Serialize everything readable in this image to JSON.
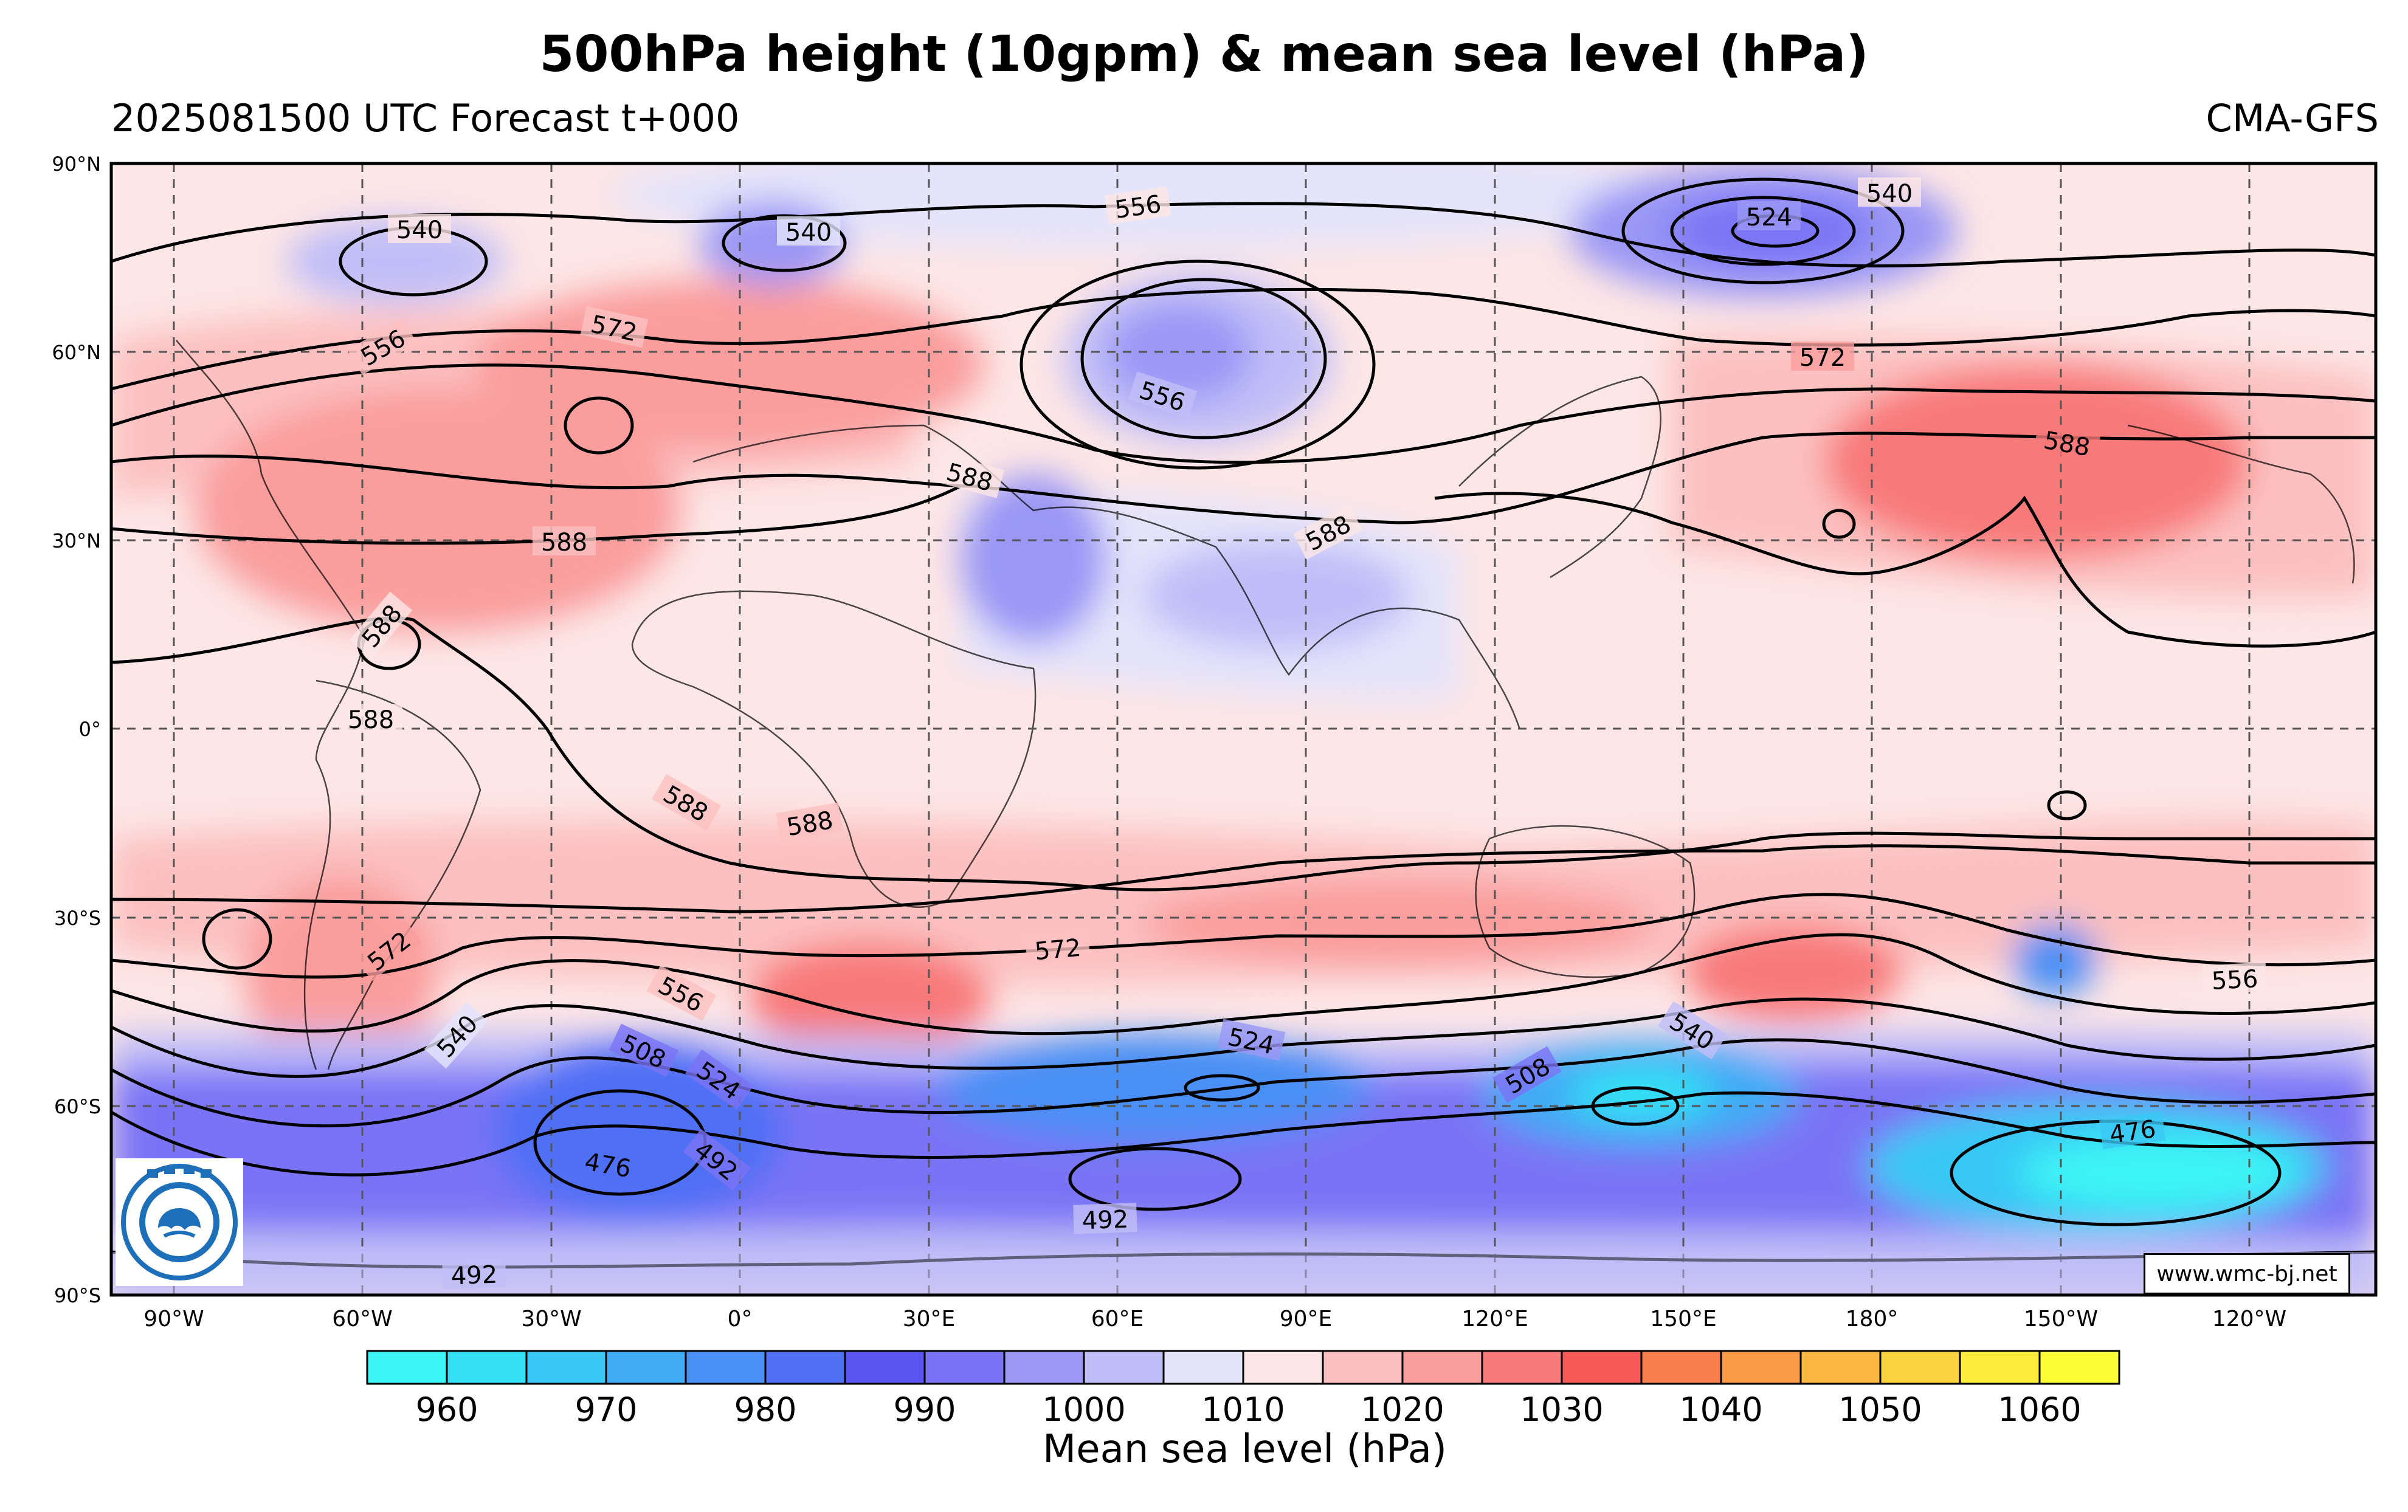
{
  "title": "500hPa height (10gpm) & mean sea level (hPa)",
  "subtitle_left": "2025081500 UTC Forecast t+000",
  "subtitle_right": "CMA-GFS",
  "website": "www.wmc-bj.net",
  "logo_icon": "cma-logo-icon",
  "lat_labels": [
    "90°N",
    "60°N",
    "30°N",
    "0°",
    "30°S",
    "60°S",
    "90°S"
  ],
  "lon_labels": [
    "90°W",
    "60°W",
    "30°W",
    "0°",
    "30°E",
    "60°E",
    "90°E",
    "120°E",
    "150°E",
    "180°",
    "150°W",
    "120°W"
  ],
  "contour_labels": [
    "540",
    "540",
    "556",
    "524",
    "540",
    "572",
    "556",
    "556",
    "572",
    "588",
    "588",
    "588",
    "588",
    "588",
    "588",
    "588",
    "588",
    "572",
    "572",
    "556",
    "556",
    "540",
    "508",
    "524",
    "524",
    "540",
    "508",
    "476",
    "492",
    "476",
    "492",
    "492"
  ],
  "colorbar": {
    "title": "Mean sea level (hPa)",
    "tick_labels": [
      "960",
      "970",
      "980",
      "990",
      "1000",
      "1010",
      "1020",
      "1030",
      "1040",
      "1050",
      "1060"
    ],
    "colors": [
      "#3ef5f5",
      "#35e0f5",
      "#39c8f5",
      "#40aaf5",
      "#4a8ff5",
      "#4f6ff5",
      "#5a55f0",
      "#7a73f5",
      "#9a97f5",
      "#c0bef8",
      "#e4e4fb",
      "#fde6e6",
      "#fcc0c0",
      "#fa9d9d",
      "#f87979",
      "#f75a56",
      "#f97e4e",
      "#f99a46",
      "#fab742",
      "#fbd33f",
      "#fcec3c",
      "#fefe38"
    ]
  }
}
